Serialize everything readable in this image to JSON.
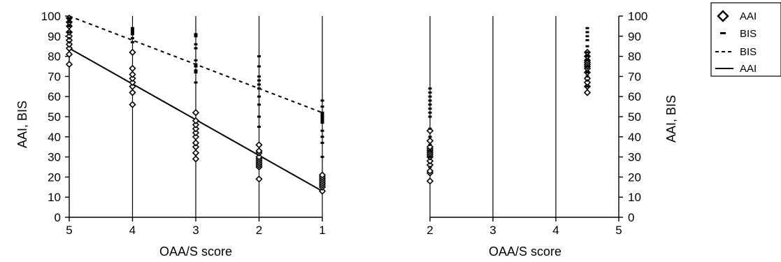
{
  "chart_data": [
    {
      "type": "scatter",
      "panel": "left",
      "xlabel": "OAA/S score",
      "ylabel": "AAI, BIS",
      "x_ticks": [
        "5",
        "4",
        "3",
        "2",
        "1"
      ],
      "y_ticks": [
        0,
        10,
        20,
        30,
        40,
        50,
        60,
        70,
        80,
        90,
        100
      ],
      "xlim": [
        5,
        1
      ],
      "ylim": [
        0,
        100
      ],
      "x_reversed": true,
      "grid": "vertical lines at OAA/S scores 4, 3, 2, 1",
      "series": [
        {
          "name": "AAI",
          "marker": "diamond",
          "points": [
            {
              "x": 5,
              "y": [
                76,
                81,
                84,
                86,
                88,
                90,
                92,
                95,
                97,
                99
              ]
            },
            {
              "x": 4,
              "y": [
                56,
                62,
                65,
                67,
                69,
                71,
                74,
                82
              ]
            },
            {
              "x": 3,
              "y": [
                29,
                32,
                35,
                37,
                40,
                42,
                44,
                46,
                48,
                52
              ]
            },
            {
              "x": 2,
              "y": [
                19,
                25,
                26,
                27,
                28,
                29,
                30,
                32,
                33,
                36
              ]
            },
            {
              "x": 1,
              "y": [
                13,
                15,
                16,
                17,
                18,
                19,
                20,
                21
              ]
            }
          ]
        },
        {
          "name": "BIS",
          "marker": "dash",
          "points": [
            {
              "x": 5,
              "y": [
                87,
                89,
                92,
                95,
                97,
                98,
                99
              ]
            },
            {
              "x": 4,
              "y": [
                87,
                89,
                91,
                92,
                93,
                94
              ]
            },
            {
              "x": 3,
              "y": [
                67,
                72,
                73,
                75,
                76,
                78,
                84,
                86,
                90,
                91
              ]
            },
            {
              "x": 2,
              "y": [
                45,
                50,
                56,
                60,
                64,
                66,
                68,
                70,
                75,
                80
              ]
            },
            {
              "x": 1,
              "y": [
                30,
                37,
                40,
                43,
                47,
                48,
                49,
                50,
                51,
                52,
                55,
                58
              ]
            }
          ]
        },
        {
          "name": "BIS",
          "line": "dashed",
          "points": [
            {
              "x": 5,
              "y": 100
            },
            {
              "x": 1,
              "y": 52
            }
          ]
        },
        {
          "name": "AAI",
          "line": "solid",
          "points": [
            {
              "x": 5,
              "y": 84
            },
            {
              "x": 1,
              "y": 13
            }
          ]
        }
      ]
    },
    {
      "type": "scatter",
      "panel": "right",
      "xlabel": "OAA/S score",
      "ylabel": "AAI, BIS",
      "x_ticks": [
        "2",
        "3",
        "4",
        "5"
      ],
      "y_ticks": [
        0,
        10,
        20,
        30,
        40,
        50,
        60,
        70,
        80,
        90,
        100
      ],
      "xlim": [
        2,
        5
      ],
      "ylim": [
        0,
        100
      ],
      "y_axis_side": "right",
      "grid": "vertical lines at OAA/S scores 2, 3, 4",
      "series": [
        {
          "name": "AAI",
          "marker": "diamond",
          "points": [
            {
              "x": 2,
              "y": [
                18,
                22,
                23,
                26,
                28,
                30,
                31,
                32,
                33,
                34,
                35,
                38,
                43
              ]
            },
            {
              "x": 4.5,
              "y": [
                62,
                65,
                67,
                69,
                72,
                74,
                75,
                76,
                77,
                78,
                80,
                82
              ]
            }
          ]
        },
        {
          "name": "BIS",
          "marker": "dash",
          "points": [
            {
              "x": 2,
              "y": [
                25,
                30,
                33,
                36,
                40,
                44,
                50,
                52,
                54,
                56,
                58,
                60,
                62,
                64
              ]
            },
            {
              "x": 4.5,
              "y": [
                65,
                68,
                70,
                72,
                75,
                78,
                80,
                82,
                85,
                88,
                90,
                92,
                94
              ]
            }
          ]
        }
      ]
    }
  ],
  "legend": {
    "placement": "top-right",
    "entries": [
      {
        "label": "AAI",
        "symbol": "diamond"
      },
      {
        "label": "BIS",
        "symbol": "dash"
      },
      {
        "label": "BIS",
        "symbol": "dashed-line"
      },
      {
        "label": "AAI",
        "symbol": "solid-line"
      }
    ]
  }
}
